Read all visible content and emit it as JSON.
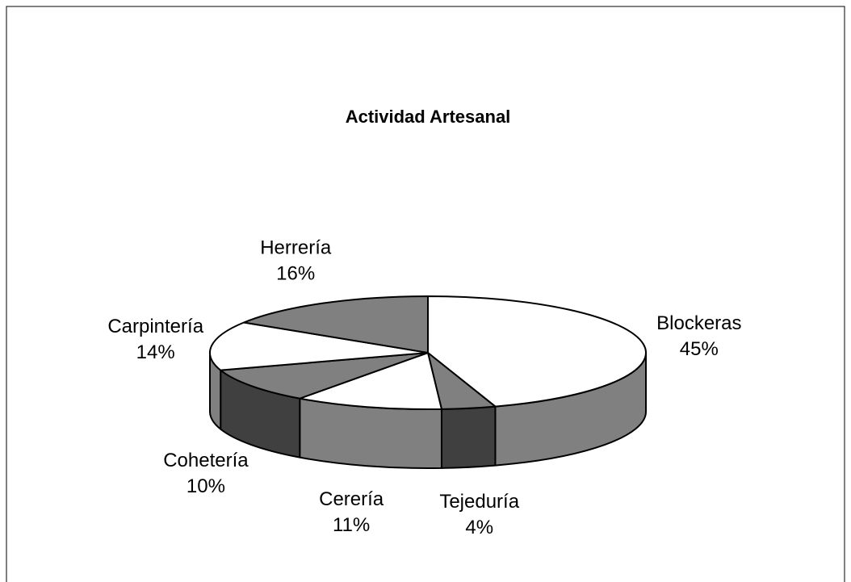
{
  "chart_data": {
    "type": "pie3d",
    "title": "Actividad Artesanal",
    "categories": [
      "Blockeras",
      "Tejeduría",
      "Cerería",
      "Cohetería",
      "Carpintería",
      "Herrería"
    ],
    "values": [
      45,
      4,
      11,
      10,
      14,
      16
    ],
    "value_labels": [
      "45%",
      "4%",
      "11%",
      "10%",
      "14%",
      "16%"
    ],
    "colors": [
      "#ffffff",
      "#808080",
      "#ffffff",
      "#808080",
      "#ffffff",
      "#808080"
    ]
  }
}
